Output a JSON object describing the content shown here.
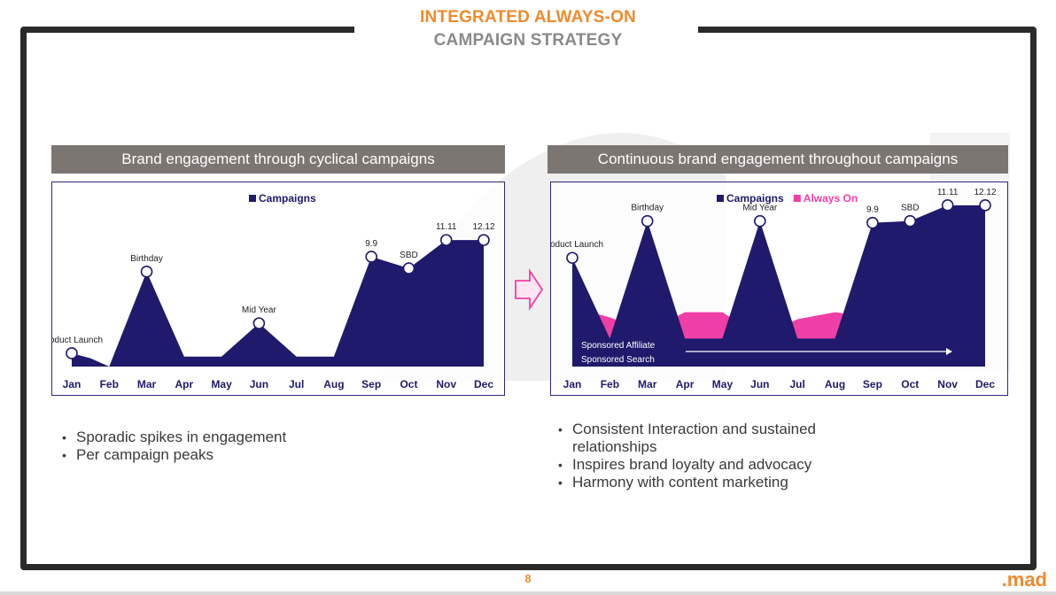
{
  "slide": {
    "title_line1": "INTEGRATED ALWAYS-ON",
    "title_line2": "CAMPAIGN STRATEGY",
    "page_number": "8",
    "logo": ".mad"
  },
  "colors": {
    "orange": "#f08a2c",
    "navy": "#1f1a6b",
    "pink": "#f03ea7",
    "header_gray": "#7c7672"
  },
  "left_panel": {
    "header": "Brand engagement through cyclical campaigns",
    "bullets": [
      "Sporadic spikes in engagement",
      "Per campaign peaks"
    ]
  },
  "right_panel": {
    "header": "Continuous brand engagement throughout campaigns",
    "bullets": [
      "Consistent Interaction and sustained relationships",
      "Inspires brand loyalty and advocacy",
      "Harmony with content marketing"
    ],
    "overlay_labels": [
      "Sponsored Affiliate",
      "Sponsored Search"
    ]
  },
  "chart_data": [
    {
      "type": "area",
      "legend": [
        "Campaigns"
      ],
      "x": [
        "Jan",
        "Feb",
        "Mar",
        "Apr",
        "May",
        "Jun",
        "Jul",
        "Aug",
        "Sep",
        "Oct",
        "Nov",
        "Dec"
      ],
      "series": [
        {
          "name": "Campaigns",
          "points": [
            {
              "x": "Jan",
              "y": 8
            },
            {
              "x": "Jan+",
              "y": 5
            },
            {
              "x": "Feb",
              "y": 0
            },
            {
              "x": "Mar",
              "y": 57
            },
            {
              "x": "Apr",
              "y": 6
            },
            {
              "x": "May",
              "y": 6
            },
            {
              "x": "Jun",
              "y": 26
            },
            {
              "x": "Jul",
              "y": 6
            },
            {
              "x": "Aug",
              "y": 6
            },
            {
              "x": "Sep",
              "y": 66
            },
            {
              "x": "Oct",
              "y": 59
            },
            {
              "x": "Nov",
              "y": 76
            },
            {
              "x": "Dec",
              "y": 76
            }
          ]
        }
      ],
      "annotations": [
        {
          "x": "Jan",
          "y": 8,
          "label": "Product Launch"
        },
        {
          "x": "Mar",
          "y": 57,
          "label": "Birthday"
        },
        {
          "x": "Jun",
          "y": 26,
          "label": "Mid Year"
        },
        {
          "x": "Sep",
          "y": 66,
          "label": "9.9"
        },
        {
          "x": "Oct",
          "y": 59,
          "label": "SBD"
        },
        {
          "x": "Nov",
          "y": 76,
          "label": "11.11"
        },
        {
          "x": "Dec",
          "y": 76,
          "label": "12.12"
        }
      ],
      "ylim": [
        0,
        100
      ]
    },
    {
      "type": "area",
      "legend": [
        "Campaigns",
        "Always On"
      ],
      "x": [
        "Jan",
        "Feb",
        "Mar",
        "Apr",
        "May",
        "Jun",
        "Jul",
        "Aug",
        "Sep",
        "Oct",
        "Nov",
        "Dec"
      ],
      "series": [
        {
          "name": "Always On",
          "points": [
            {
              "x": "Jan",
              "y": 34
            },
            {
              "x": "Feb",
              "y": 28
            },
            {
              "x": "Mar",
              "y": 20
            },
            {
              "x": "Apr",
              "y": 31
            },
            {
              "x": "May",
              "y": 31
            },
            {
              "x": "Jun",
              "y": 17
            },
            {
              "x": "Jul",
              "y": 27
            },
            {
              "x": "Aug",
              "y": 31
            },
            {
              "x": "Sep",
              "y": 28
            },
            {
              "x": "Oct",
              "y": 42
            },
            {
              "x": "Nov",
              "y": 28
            },
            {
              "x": "Dec",
              "y": 28
            }
          ]
        },
        {
          "name": "Campaigns",
          "points": [
            {
              "x": "Jan",
              "y": 62
            },
            {
              "x": "Feb",
              "y": 16
            },
            {
              "x": "Mar",
              "y": 83
            },
            {
              "x": "Apr",
              "y": 16
            },
            {
              "x": "May",
              "y": 16
            },
            {
              "x": "Jun",
              "y": 83
            },
            {
              "x": "Jul",
              "y": 16
            },
            {
              "x": "Aug",
              "y": 16
            },
            {
              "x": "Sep",
              "y": 82
            },
            {
              "x": "Oct",
              "y": 83
            },
            {
              "x": "Nov",
              "y": 92
            },
            {
              "x": "Dec",
              "y": 92
            }
          ]
        }
      ],
      "annotations": [
        {
          "x": "Jan",
          "y": 62,
          "label": "Product Launch"
        },
        {
          "x": "Mar",
          "y": 83,
          "label": "Birthday"
        },
        {
          "x": "Jun",
          "y": 83,
          "label": "Mid Year"
        },
        {
          "x": "Sep",
          "y": 82,
          "label": "9.9"
        },
        {
          "x": "Oct",
          "y": 83,
          "label": "SBD"
        },
        {
          "x": "Nov",
          "y": 92,
          "label": "11.11"
        },
        {
          "x": "Dec",
          "y": 92,
          "label": "12.12"
        }
      ],
      "ylim": [
        0,
        100
      ]
    }
  ]
}
